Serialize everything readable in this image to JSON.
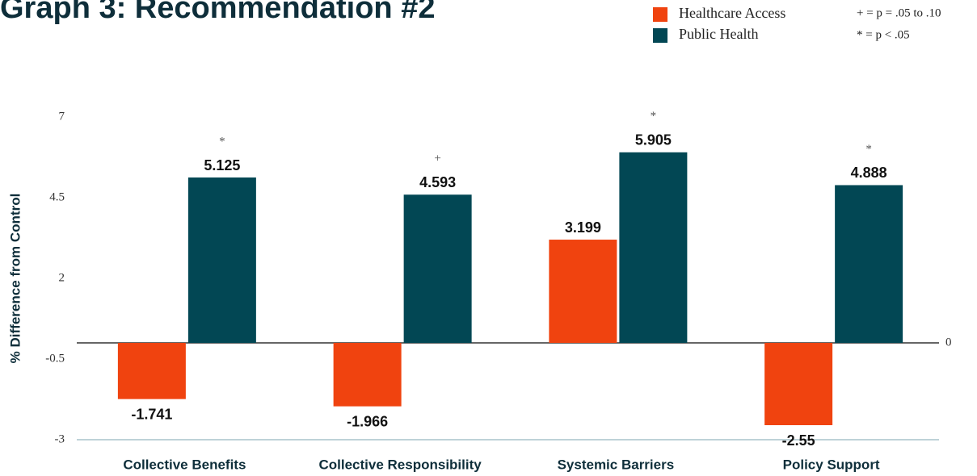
{
  "chart_data": {
    "type": "bar",
    "title": "Graph 3: Recommendation #2",
    "y_label": "% Difference from Control",
    "categories": [
      "Collective Benefits",
      "Collective Responsibility",
      "Systemic Barriers",
      "Policy Support"
    ],
    "series": [
      {
        "name": "Healthcare Access",
        "color": "#f0430f",
        "values": [
          -1.741,
          -1.966,
          3.199,
          -2.55
        ]
      },
      {
        "name": "Public Health",
        "color": "#024754",
        "values": [
          5.125,
          4.593,
          5.905,
          4.888
        ],
        "markers": [
          "*",
          "+",
          "*",
          "*"
        ]
      }
    ],
    "notes": [
      "+ = p = .05 to .10",
      "* = p < .05"
    ],
    "ylim": [
      -3,
      7
    ],
    "yticks": [
      7,
      4.5,
      2,
      -0.5,
      -3
    ],
    "y2lim": [
      -3,
      7
    ],
    "y2ticks": [
      0
    ]
  }
}
